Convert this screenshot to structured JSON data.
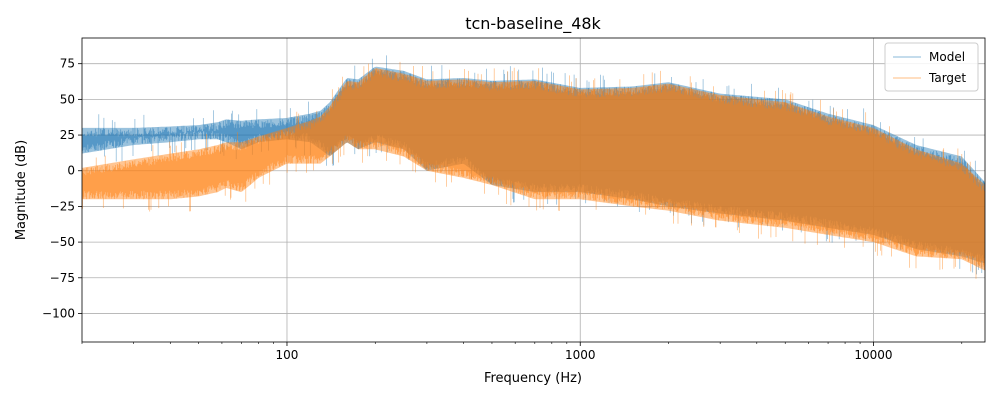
{
  "chart_data": {
    "type": "area",
    "title": "tcn-baseline_48k",
    "xlabel": "Frequency (Hz)",
    "ylabel": "Magnitude (dB)",
    "xscale": "log",
    "xlim": [
      20,
      24000
    ],
    "ylim": [
      -120,
      93
    ],
    "xticks": [
      100,
      1000,
      10000
    ],
    "xtick_labels": [
      "100",
      "1000",
      "10000"
    ],
    "yticks": [
      75,
      50,
      25,
      0,
      -25,
      -50,
      -75,
      -100
    ],
    "ytick_labels": [
      "75",
      "50",
      "25",
      "0",
      "−25",
      "−50",
      "−75",
      "−100"
    ],
    "grid": true,
    "legend": "top-right",
    "series": [
      {
        "name": "Model",
        "color": "#1f77b4",
        "x": [
          20,
          30,
          40,
          50,
          58,
          62,
          70,
          80,
          100,
          120,
          130,
          140,
          160,
          175,
          200,
          250,
          300,
          400,
          500,
          700,
          1000,
          1500,
          2000,
          3000,
          5000,
          7000,
          10000,
          14000,
          20000,
          24000
        ],
        "upper": [
          30,
          30,
          31,
          32,
          34,
          36,
          35,
          36,
          37,
          40,
          42,
          48,
          65,
          64,
          73,
          70,
          64,
          65,
          63,
          64,
          58,
          59,
          62,
          54,
          50,
          40,
          32,
          18,
          10,
          -8
        ],
        "lower": [
          12,
          18,
          20,
          22,
          22,
          20,
          15,
          20,
          22,
          20,
          15,
          10,
          20,
          15,
          20,
          15,
          0,
          5,
          -10,
          -15,
          -15,
          -20,
          -25,
          -30,
          -35,
          -40,
          -45,
          -55,
          -60,
          -65
        ]
      },
      {
        "name": "Target",
        "color": "#ff7f0e",
        "x": [
          20,
          30,
          40,
          50,
          58,
          62,
          70,
          80,
          100,
          120,
          130,
          140,
          160,
          175,
          200,
          250,
          300,
          400,
          500,
          700,
          1000,
          1500,
          2000,
          3000,
          5000,
          7000,
          10000,
          14000,
          20000,
          24000
        ],
        "upper": [
          2,
          8,
          12,
          15,
          18,
          20,
          20,
          24,
          30,
          35,
          38,
          45,
          63,
          62,
          72,
          68,
          63,
          64,
          62,
          63,
          57,
          58,
          61,
          53,
          48,
          38,
          30,
          15,
          5,
          -10
        ],
        "lower": [
          -20,
          -20,
          -20,
          -18,
          -15,
          -12,
          -15,
          -5,
          5,
          5,
          5,
          10,
          20,
          15,
          15,
          10,
          0,
          -5,
          -10,
          -20,
          -20,
          -25,
          -28,
          -35,
          -40,
          -45,
          -50,
          -60,
          -62,
          -70
        ]
      }
    ],
    "legend_entries": [
      "Model",
      "Target"
    ]
  }
}
